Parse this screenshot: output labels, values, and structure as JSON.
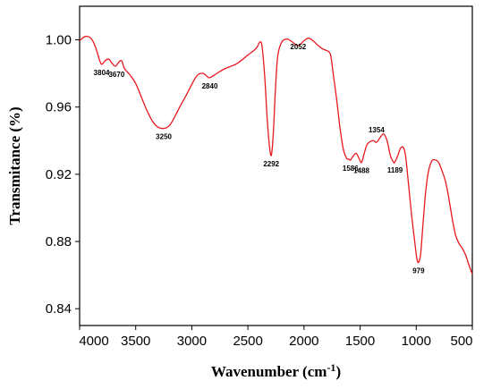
{
  "chart_data": {
    "type": "line",
    "xlabel": "Wavenumber (cm",
    "xlabel_sup": "-1",
    "xlabel_end": ")",
    "ylabel": "Transmitance (%)",
    "xlim": [
      4000,
      500
    ],
    "ylim": [
      0.83,
      1.02
    ],
    "x_ticks": [
      4000,
      3500,
      3000,
      2500,
      2000,
      1500,
      1000,
      500
    ],
    "y_ticks": [
      1.0,
      0.96,
      0.92,
      0.88,
      0.84
    ],
    "y_tick_labels": [
      "1.00",
      "0.96",
      "0.92",
      "0.88",
      "0.84"
    ],
    "line_color": "#e8191f",
    "grid": false,
    "series": [
      {
        "points": [
          [
            4000,
            0.9995
          ],
          [
            3950,
            1.002
          ],
          [
            3900,
            1.001
          ],
          [
            3860,
            0.996
          ],
          [
            3820,
            0.9875
          ],
          [
            3800,
            0.9855
          ],
          [
            3770,
            0.9878
          ],
          [
            3740,
            0.9885
          ],
          [
            3710,
            0.986
          ],
          [
            3680,
            0.9843
          ],
          [
            3650,
            0.9868
          ],
          [
            3625,
            0.9875
          ],
          [
            3600,
            0.983
          ],
          [
            3550,
            0.979
          ],
          [
            3500,
            0.974
          ],
          [
            3450,
            0.966
          ],
          [
            3400,
            0.958
          ],
          [
            3350,
            0.9515
          ],
          [
            3300,
            0.948
          ],
          [
            3250,
            0.9473
          ],
          [
            3200,
            0.949
          ],
          [
            3150,
            0.9545
          ],
          [
            3100,
            0.961
          ],
          [
            3050,
            0.967
          ],
          [
            3000,
            0.9735
          ],
          [
            2950,
            0.979
          ],
          [
            2900,
            0.98
          ],
          [
            2860,
            0.978
          ],
          [
            2840,
            0.9775
          ],
          [
            2800,
            0.979
          ],
          [
            2750,
            0.9812
          ],
          [
            2700,
            0.983
          ],
          [
            2650,
            0.9843
          ],
          [
            2600,
            0.9858
          ],
          [
            2550,
            0.9882
          ],
          [
            2500,
            0.991
          ],
          [
            2450,
            0.9935
          ],
          [
            2420,
            0.9955
          ],
          [
            2395,
            0.9985
          ],
          [
            2375,
            0.9965
          ],
          [
            2350,
            0.978
          ],
          [
            2330,
            0.955
          ],
          [
            2310,
            0.938
          ],
          [
            2292,
            0.9312
          ],
          [
            2275,
            0.943
          ],
          [
            2255,
            0.97
          ],
          [
            2235,
            0.99
          ],
          [
            2200,
            0.9985
          ],
          [
            2150,
            1.0005
          ],
          [
            2100,
            0.9985
          ],
          [
            2052,
            0.9965
          ],
          [
            2000,
            0.9995
          ],
          [
            1960,
            1.001
          ],
          [
            1920,
            0.9995
          ],
          [
            1880,
            0.997
          ],
          [
            1830,
            0.9945
          ],
          [
            1780,
            0.993
          ],
          [
            1760,
            0.99
          ],
          [
            1740,
            0.98
          ],
          [
            1710,
            0.965
          ],
          [
            1680,
            0.948
          ],
          [
            1650,
            0.935
          ],
          [
            1620,
            0.9295
          ],
          [
            1600,
            0.929
          ],
          [
            1586,
            0.9285
          ],
          [
            1560,
            0.931
          ],
          [
            1535,
            0.9325
          ],
          [
            1510,
            0.9295
          ],
          [
            1488,
            0.927
          ],
          [
            1465,
            0.932
          ],
          [
            1440,
            0.9375
          ],
          [
            1410,
            0.9395
          ],
          [
            1380,
            0.94
          ],
          [
            1354,
            0.939
          ],
          [
            1320,
            0.942
          ],
          [
            1290,
            0.944
          ],
          [
            1260,
            0.94
          ],
          [
            1230,
            0.931
          ],
          [
            1200,
            0.927
          ],
          [
            1189,
            0.9275
          ],
          [
            1165,
            0.931
          ],
          [
            1140,
            0.9355
          ],
          [
            1115,
            0.936
          ],
          [
            1095,
            0.931
          ],
          [
            1070,
            0.915
          ],
          [
            1040,
            0.895
          ],
          [
            1010,
            0.878
          ],
          [
            995,
            0.87
          ],
          [
            979,
            0.8675
          ],
          [
            960,
            0.873
          ],
          [
            940,
            0.89
          ],
          [
            915,
            0.91
          ],
          [
            890,
            0.922
          ],
          [
            860,
            0.928
          ],
          [
            830,
            0.9285
          ],
          [
            800,
            0.927
          ],
          [
            770,
            0.922
          ],
          [
            740,
            0.916
          ],
          [
            710,
            0.906
          ],
          [
            680,
            0.894
          ],
          [
            650,
            0.884
          ],
          [
            620,
            0.879
          ],
          [
            590,
            0.876
          ],
          [
            560,
            0.872
          ],
          [
            530,
            0.866
          ],
          [
            500,
            0.8605
          ]
        ]
      }
    ],
    "annotations": [
      {
        "text": "3804",
        "x": 3804,
        "y": 0.9855
      },
      {
        "text": "3670",
        "x": 3670,
        "y": 0.9843
      },
      {
        "text": "3250",
        "x": 3250,
        "y": 0.9473
      },
      {
        "text": "2840",
        "x": 2840,
        "y": 0.9775
      },
      {
        "text": "2292",
        "x": 2292,
        "y": 0.9312
      },
      {
        "text": "2052",
        "x": 2052,
        "y": 0.9965
      },
      {
        "text": "1586",
        "x": 1586,
        "y": 0.9285
      },
      {
        "text": "1488",
        "x": 1488,
        "y": 0.927
      },
      {
        "text": "1354",
        "x": 1354,
        "y": 0.939
      },
      {
        "text": "1189",
        "x": 1189,
        "y": 0.9275
      },
      {
        "text": "979",
        "x": 979,
        "y": 0.8675
      }
    ]
  }
}
